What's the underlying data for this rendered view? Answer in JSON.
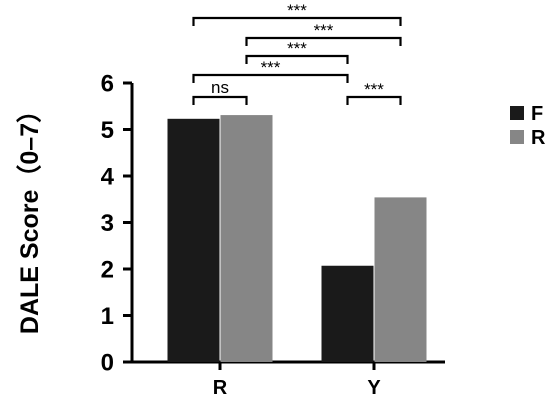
{
  "chart_data": {
    "type": "bar",
    "title": "",
    "xlabel": "",
    "ylabel": "DALE Score（0–7）",
    "ylim": [
      0,
      6
    ],
    "yticks": [
      "0",
      "1",
      "2",
      "3",
      "4",
      "5",
      "6"
    ],
    "categories": [
      "R",
      "Y"
    ],
    "series": [
      {
        "name": "F",
        "color": "#1a1a1a",
        "values": [
          5.23,
          2.07
        ]
      },
      {
        "name": "R",
        "color": "#868686",
        "values": [
          5.31,
          3.54
        ]
      }
    ],
    "legend": {
      "position": "right",
      "entries": [
        "F",
        "R"
      ]
    },
    "grid": false,
    "significance": [
      {
        "label": "***",
        "from": [
          0,
          0
        ],
        "to": [
          1,
          1
        ]
      },
      {
        "label": "***",
        "from": [
          0,
          1
        ],
        "to": [
          1,
          1
        ]
      },
      {
        "label": "***",
        "from": [
          0,
          1
        ],
        "to": [
          1,
          0
        ]
      },
      {
        "label": "***",
        "from": [
          0,
          0
        ],
        "to": [
          1,
          0
        ]
      },
      {
        "label": "ns",
        "from": [
          0,
          0
        ],
        "to": [
          0,
          1
        ]
      },
      {
        "label": "***",
        "from": [
          1,
          0
        ],
        "to": [
          1,
          1
        ]
      }
    ]
  }
}
